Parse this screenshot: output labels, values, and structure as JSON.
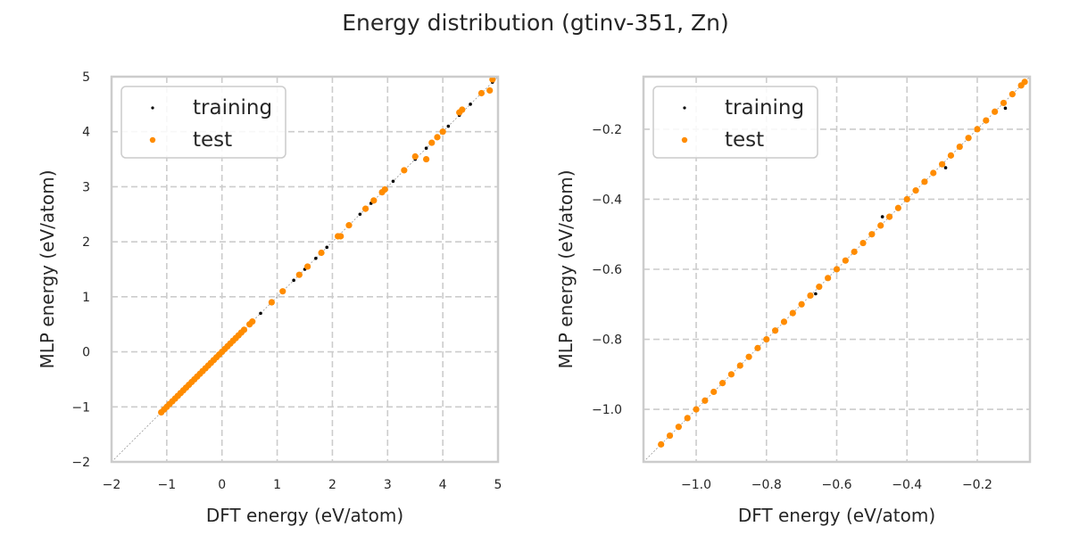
{
  "title": "Energy distribution (gtinv-351, Zn)",
  "colors": {
    "training": "#000000",
    "test": "#ff8c00",
    "grid": "#cccccc",
    "frame": "#cccccc",
    "diagonal": "#999999"
  },
  "chart_data": [
    {
      "type": "scatter",
      "xlabel": "DFT energy (eV/atom)",
      "ylabel": "MLP energy (eV/atom)",
      "xlim": [
        -2,
        5
      ],
      "ylim": [
        -2,
        5
      ],
      "xticks": [
        "-2",
        "-1",
        "0",
        "1",
        "2",
        "3",
        "4",
        "5"
      ],
      "yticks": [
        "-2",
        "-1",
        "0",
        "1",
        "2",
        "3",
        "4",
        "5"
      ],
      "xtick_values": [
        -2,
        -1,
        0,
        1,
        2,
        3,
        4,
        5
      ],
      "ytick_values": [
        -2,
        -1,
        0,
        1,
        2,
        3,
        4,
        5
      ],
      "grid": true,
      "legend_position": "top-left",
      "diagonal": "y=x",
      "series": [
        {
          "name": "training",
          "points": [
            [
              -1.1,
              -1.1
            ],
            [
              -0.9,
              -0.9
            ],
            [
              -0.7,
              -0.7
            ],
            [
              -0.5,
              -0.5
            ],
            [
              -0.3,
              -0.3
            ],
            [
              -0.1,
              -0.1
            ],
            [
              0.1,
              0.1
            ],
            [
              0.3,
              0.3
            ],
            [
              0.5,
              0.5
            ],
            [
              0.7,
              0.7
            ],
            [
              0.9,
              0.9
            ],
            [
              1.1,
              1.1
            ],
            [
              1.3,
              1.3
            ],
            [
              1.5,
              1.5
            ],
            [
              1.7,
              1.7
            ],
            [
              1.9,
              1.9
            ],
            [
              2.1,
              2.1
            ],
            [
              2.3,
              2.3
            ],
            [
              2.5,
              2.5
            ],
            [
              2.7,
              2.7
            ],
            [
              2.9,
              2.9
            ],
            [
              3.1,
              3.1
            ],
            [
              3.3,
              3.3
            ],
            [
              3.5,
              3.5
            ],
            [
              3.7,
              3.7
            ],
            [
              3.9,
              3.9
            ],
            [
              4.1,
              4.1
            ],
            [
              4.3,
              4.3
            ],
            [
              4.5,
              4.5
            ],
            [
              4.7,
              4.7
            ],
            [
              4.9,
              4.9
            ]
          ]
        },
        {
          "name": "test",
          "points": [
            [
              -1.1,
              -1.1
            ],
            [
              -1.05,
              -1.05
            ],
            [
              -1.0,
              -1.0
            ],
            [
              -0.95,
              -0.95
            ],
            [
              -0.9,
              -0.9
            ],
            [
              -0.85,
              -0.85
            ],
            [
              -0.8,
              -0.8
            ],
            [
              -0.75,
              -0.75
            ],
            [
              -0.7,
              -0.7
            ],
            [
              -0.65,
              -0.65
            ],
            [
              -0.6,
              -0.6
            ],
            [
              -0.55,
              -0.55
            ],
            [
              -0.5,
              -0.5
            ],
            [
              -0.45,
              -0.45
            ],
            [
              -0.4,
              -0.4
            ],
            [
              -0.35,
              -0.35
            ],
            [
              -0.3,
              -0.3
            ],
            [
              -0.25,
              -0.25
            ],
            [
              -0.2,
              -0.2
            ],
            [
              -0.15,
              -0.15
            ],
            [
              -0.1,
              -0.1
            ],
            [
              -0.05,
              -0.05
            ],
            [
              0.0,
              0.0
            ],
            [
              0.05,
              0.05
            ],
            [
              0.1,
              0.1
            ],
            [
              0.15,
              0.15
            ],
            [
              0.2,
              0.2
            ],
            [
              0.25,
              0.25
            ],
            [
              0.3,
              0.3
            ],
            [
              0.35,
              0.35
            ],
            [
              0.4,
              0.4
            ],
            [
              0.5,
              0.5
            ],
            [
              0.55,
              0.55
            ],
            [
              0.9,
              0.9
            ],
            [
              1.1,
              1.1
            ],
            [
              1.4,
              1.4
            ],
            [
              1.55,
              1.55
            ],
            [
              1.8,
              1.8
            ],
            [
              2.1,
              2.1
            ],
            [
              2.15,
              2.1
            ],
            [
              2.3,
              2.3
            ],
            [
              2.6,
              2.6
            ],
            [
              2.75,
              2.75
            ],
            [
              2.9,
              2.9
            ],
            [
              2.95,
              2.95
            ],
            [
              3.3,
              3.3
            ],
            [
              3.5,
              3.55
            ],
            [
              3.7,
              3.5
            ],
            [
              3.8,
              3.8
            ],
            [
              3.9,
              3.9
            ],
            [
              4.0,
              4.0
            ],
            [
              4.3,
              4.35
            ],
            [
              4.35,
              4.4
            ],
            [
              4.7,
              4.7
            ],
            [
              4.85,
              4.75
            ],
            [
              4.9,
              4.95
            ]
          ]
        }
      ]
    },
    {
      "type": "scatter",
      "xlabel": "DFT energy (eV/atom)",
      "ylabel": "MLP energy (eV/atom)",
      "xlim": [
        -1.15,
        -0.05
      ],
      "ylim": [
        -1.15,
        -0.05
      ],
      "xticks": [
        "-1.0",
        "-0.8",
        "-0.6",
        "-0.4",
        "-0.2"
      ],
      "yticks": [
        "-1.0",
        "-0.8",
        "-0.6",
        "-0.4",
        "-0.2"
      ],
      "xtick_values": [
        -1.0,
        -0.8,
        -0.6,
        -0.4,
        -0.2
      ],
      "ytick_values": [
        -1.0,
        -0.8,
        -0.6,
        -0.4,
        -0.2
      ],
      "grid": true,
      "legend_position": "top-left",
      "diagonal": "y=x",
      "series": [
        {
          "name": "training",
          "points": [
            [
              -1.05,
              -1.05
            ],
            [
              -0.95,
              -0.95
            ],
            [
              -0.9,
              -0.9
            ],
            [
              -0.85,
              -0.85
            ],
            [
              -0.8,
              -0.8
            ],
            [
              -0.75,
              -0.75
            ],
            [
              -0.7,
              -0.7
            ],
            [
              -0.66,
              -0.67
            ],
            [
              -0.6,
              -0.6
            ],
            [
              -0.55,
              -0.55
            ],
            [
              -0.5,
              -0.5
            ],
            [
              -0.47,
              -0.45
            ],
            [
              -0.4,
              -0.4
            ],
            [
              -0.35,
              -0.35
            ],
            [
              -0.29,
              -0.31
            ],
            [
              -0.25,
              -0.25
            ],
            [
              -0.2,
              -0.2
            ],
            [
              -0.12,
              -0.14
            ],
            [
              -0.1,
              -0.1
            ]
          ]
        },
        {
          "name": "test",
          "points": [
            [
              -1.1,
              -1.1
            ],
            [
              -1.075,
              -1.075
            ],
            [
              -1.05,
              -1.05
            ],
            [
              -1.025,
              -1.025
            ],
            [
              -1.0,
              -1.0
            ],
            [
              -0.975,
              -0.975
            ],
            [
              -0.95,
              -0.95
            ],
            [
              -0.925,
              -0.925
            ],
            [
              -0.9,
              -0.9
            ],
            [
              -0.875,
              -0.875
            ],
            [
              -0.85,
              -0.85
            ],
            [
              -0.825,
              -0.825
            ],
            [
              -0.8,
              -0.8
            ],
            [
              -0.775,
              -0.775
            ],
            [
              -0.75,
              -0.75
            ],
            [
              -0.725,
              -0.725
            ],
            [
              -0.7,
              -0.7
            ],
            [
              -0.675,
              -0.675
            ],
            [
              -0.65,
              -0.65
            ],
            [
              -0.625,
              -0.625
            ],
            [
              -0.6,
              -0.6
            ],
            [
              -0.575,
              -0.575
            ],
            [
              -0.55,
              -0.55
            ],
            [
              -0.525,
              -0.525
            ],
            [
              -0.5,
              -0.5
            ],
            [
              -0.475,
              -0.475
            ],
            [
              -0.45,
              -0.45
            ],
            [
              -0.425,
              -0.425
            ],
            [
              -0.4,
              -0.4
            ],
            [
              -0.375,
              -0.375
            ],
            [
              -0.35,
              -0.35
            ],
            [
              -0.325,
              -0.325
            ],
            [
              -0.3,
              -0.3
            ],
            [
              -0.275,
              -0.275
            ],
            [
              -0.25,
              -0.25
            ],
            [
              -0.225,
              -0.225
            ],
            [
              -0.2,
              -0.2
            ],
            [
              -0.175,
              -0.175
            ],
            [
              -0.15,
              -0.15
            ],
            [
              -0.125,
              -0.125
            ],
            [
              -0.1,
              -0.1
            ],
            [
              -0.075,
              -0.075
            ],
            [
              -0.065,
              -0.065
            ]
          ]
        }
      ]
    }
  ]
}
